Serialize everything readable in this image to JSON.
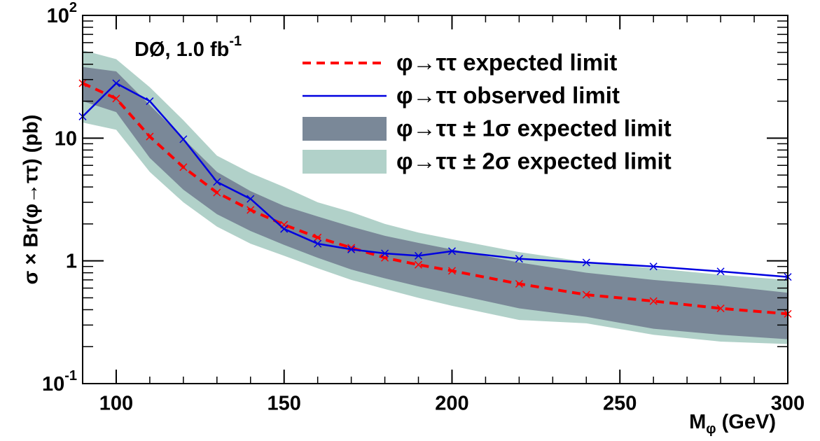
{
  "chart_data": {
    "type": "line",
    "annotation": {
      "text": "DØ, 1.0 fb",
      "superscript": "-1"
    },
    "x_label": {
      "text": "M",
      "subscript": "φ",
      "suffix": " (GeV)"
    },
    "y_label": "σ × Br(φ→ττ) (pb)",
    "log_y": true,
    "x": [
      90,
      100,
      110,
      120,
      130,
      140,
      150,
      160,
      170,
      180,
      190,
      200,
      220,
      240,
      260,
      280,
      300
    ],
    "series": [
      {
        "name": "φ→ττ expected limit",
        "color": "#ff0000",
        "dashed": true,
        "values": [
          28,
          21,
          10.3,
          5.8,
          3.6,
          2.6,
          1.97,
          1.55,
          1.28,
          1.06,
          0.93,
          0.83,
          0.65,
          0.53,
          0.47,
          0.41,
          0.37
        ]
      },
      {
        "name": "φ→ττ observed limit",
        "color": "#0000e0",
        "dashed": false,
        "values": [
          15,
          28,
          20,
          9.8,
          4.4,
          3.2,
          1.82,
          1.38,
          1.24,
          1.15,
          1.1,
          1.2,
          1.04,
          0.97,
          0.9,
          0.82,
          0.74
        ]
      }
    ],
    "bands": [
      {
        "name": "φ→ττ ± 1σ expected limit",
        "color": "#7a8898",
        "upper": [
          38,
          35,
          18.6,
          9.9,
          5.3,
          3.7,
          2.8,
          2.3,
          1.9,
          1.6,
          1.4,
          1.24,
          0.97,
          0.8,
          0.7,
          0.63,
          0.55
        ],
        "lower": [
          20,
          16.3,
          6.9,
          3.8,
          2.4,
          1.75,
          1.35,
          1.06,
          0.85,
          0.72,
          0.62,
          0.54,
          0.41,
          0.35,
          0.28,
          0.25,
          0.23
        ]
      },
      {
        "name": "φ→ττ ± 2σ expected limit",
        "color": "#b1d1c9",
        "upper": [
          52,
          44,
          26,
          14,
          7.2,
          5.2,
          4.0,
          3.0,
          2.5,
          2.0,
          1.7,
          1.5,
          1.18,
          0.98,
          0.87,
          0.77,
          0.7
        ],
        "lower": [
          13.4,
          11.7,
          5.3,
          3.0,
          1.9,
          1.38,
          1.1,
          0.87,
          0.7,
          0.59,
          0.5,
          0.43,
          0.33,
          0.31,
          0.25,
          0.22,
          0.21
        ]
      }
    ],
    "xlim": [
      90,
      300
    ],
    "xticks": [
      100,
      150,
      200,
      250,
      300
    ],
    "ylim": [
      0.1,
      100
    ],
    "yticks": [
      {
        "value": 0.1,
        "label": "10",
        "exponent": "-1"
      },
      {
        "value": 1,
        "label": "1"
      },
      {
        "value": 10,
        "label": "10"
      },
      {
        "value": 100,
        "label": "10",
        "exponent": "2"
      }
    ]
  }
}
